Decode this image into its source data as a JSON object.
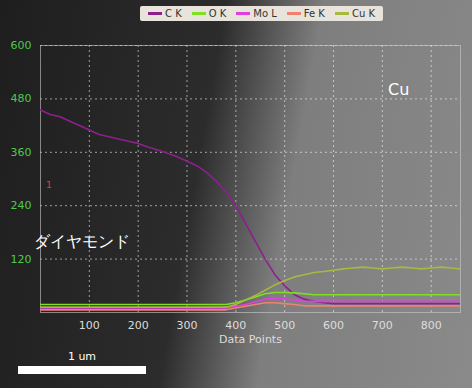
{
  "chart_data": {
    "type": "line",
    "x_label": "Data Points",
    "x": [
      0,
      20,
      40,
      60,
      80,
      100,
      120,
      140,
      160,
      180,
      200,
      220,
      240,
      260,
      280,
      300,
      320,
      340,
      360,
      380,
      400,
      420,
      440,
      460,
      480,
      500,
      520,
      540,
      560,
      580,
      600,
      620,
      640,
      660,
      680,
      700,
      720,
      740,
      760,
      780,
      800,
      820,
      840,
      860
    ],
    "series": [
      {
        "name": "C K",
        "color": "#8e1f8e",
        "values": [
          455,
          445,
          440,
          430,
          420,
          410,
          400,
          395,
          390,
          385,
          380,
          372,
          365,
          358,
          350,
          340,
          330,
          315,
          295,
          270,
          240,
          200,
          160,
          120,
          85,
          60,
          40,
          30,
          25,
          22,
          20,
          20,
          20,
          20,
          20,
          20,
          20,
          20,
          20,
          20,
          20,
          20,
          20,
          20
        ]
      },
      {
        "name": "O K",
        "color": "#7ee020",
        "values": [
          18,
          18,
          18,
          18,
          18,
          18,
          18,
          18,
          18,
          18,
          18,
          18,
          18,
          18,
          18,
          18,
          18,
          18,
          18,
          18,
          22,
          28,
          35,
          42,
          45,
          45,
          44,
          42,
          40,
          40,
          40,
          40,
          40,
          40,
          40,
          40,
          40,
          40,
          40,
          40,
          40,
          40,
          40,
          40
        ]
      },
      {
        "name": "Mo L",
        "color": "#e040e0",
        "values": [
          10,
          10,
          10,
          10,
          10,
          10,
          10,
          10,
          10,
          10,
          10,
          10,
          10,
          10,
          10,
          10,
          10,
          10,
          10,
          10,
          14,
          18,
          24,
          30,
          32,
          30,
          28,
          25,
          25,
          25,
          25,
          25,
          25,
          25,
          25,
          25,
          25,
          25,
          25,
          25,
          25,
          25,
          25,
          25
        ]
      },
      {
        "name": "Fe K",
        "color": "#f08070",
        "values": [
          6,
          6,
          6,
          6,
          6,
          6,
          6,
          6,
          6,
          6,
          6,
          6,
          6,
          6,
          6,
          6,
          6,
          6,
          6,
          6,
          10,
          14,
          18,
          22,
          22,
          20,
          18,
          15,
          15,
          15,
          15,
          15,
          15,
          15,
          15,
          15,
          15,
          15,
          15,
          15,
          15,
          15,
          15,
          15
        ]
      },
      {
        "name": "Cu K",
        "color": "#a8b840",
        "values": [
          12,
          12,
          12,
          12,
          12,
          12,
          12,
          12,
          12,
          12,
          12,
          12,
          12,
          12,
          12,
          12,
          12,
          12,
          12,
          12,
          18,
          28,
          38,
          50,
          62,
          72,
          80,
          85,
          90,
          92,
          95,
          98,
          100,
          102,
          100,
          98,
          100,
          102,
          100,
          98,
          100,
          102,
          100,
          98
        ]
      }
    ],
    "xlim": [
      0,
      860
    ],
    "xticks": [
      100,
      200,
      300,
      400,
      500,
      600,
      700,
      800
    ],
    "ylim": [
      0,
      600
    ],
    "yticks": [
      120,
      240,
      360,
      480,
      600
    ],
    "grid": true,
    "legend": "top",
    "annotations": [
      "ダイヤモンド",
      "Cu",
      "1"
    ],
    "scale_bar": "1 um"
  }
}
